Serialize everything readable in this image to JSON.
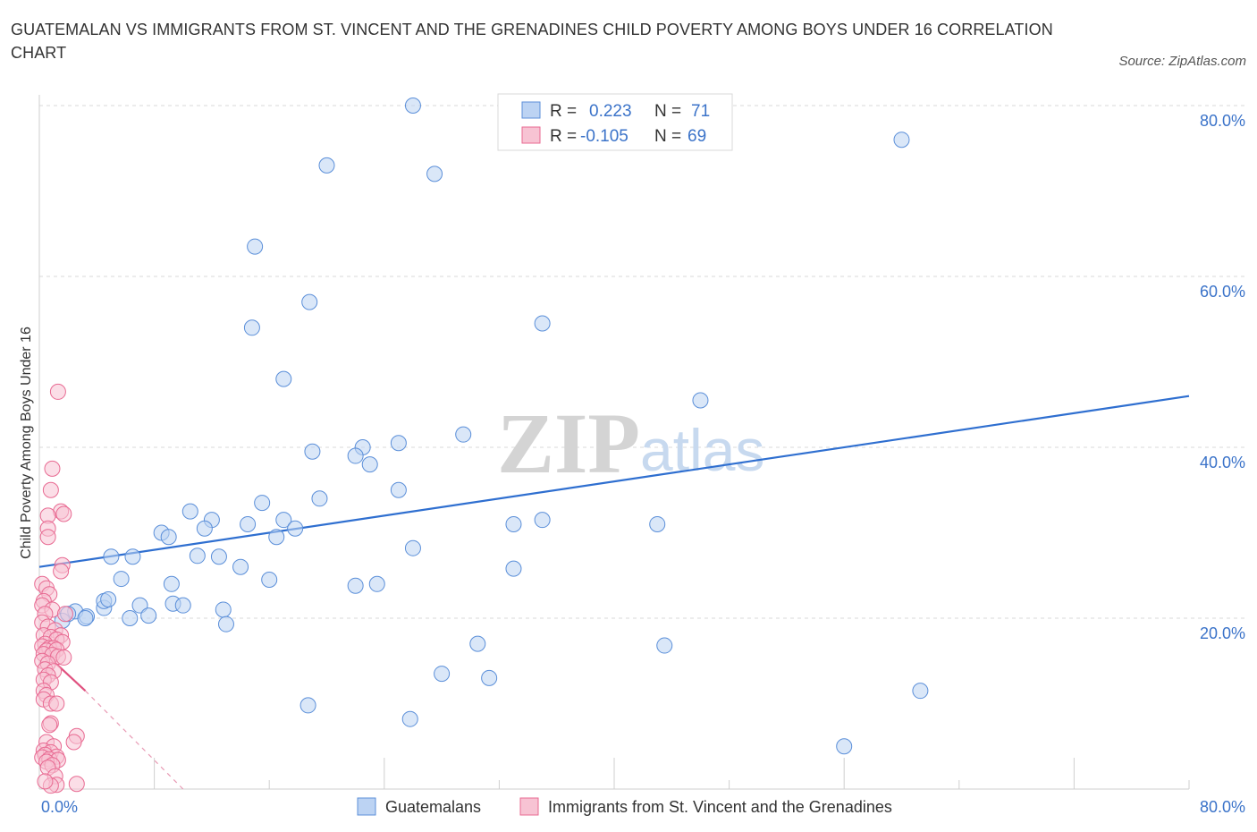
{
  "title": "GUATEMALAN VS IMMIGRANTS FROM ST. VINCENT AND THE GRENADINES CHILD POVERTY AMONG BOYS UNDER 16 CORRELATION CHART",
  "source": "Source: ZipAtlas.com",
  "watermark": {
    "zip": "ZIP",
    "atlas": "atlas"
  },
  "legend_box": {
    "rows": [
      {
        "r_label": "R =",
        "r_value": "0.223",
        "n_label": "N =",
        "n_value": "71"
      },
      {
        "r_label": "R =",
        "r_value": "-0.105",
        "n_label": "N =",
        "n_value": "69"
      }
    ]
  },
  "colors": {
    "blue": "#5b8fd9",
    "blue_fill": "#bcd3f3",
    "pink": "#e86a92",
    "pink_fill": "#f7c3d3",
    "axis_text": "#3b73c9",
    "grid": "#d9d9d9"
  },
  "chart_data": {
    "type": "scatter",
    "xlabel": "",
    "ylabel": "Child Poverty Among Boys Under 16",
    "xlim": [
      0,
      80
    ],
    "ylim": [
      0,
      80
    ],
    "x_tick_labels": [
      {
        "value": 0,
        "label": "0.0%"
      },
      {
        "value": 80,
        "label": "80.0%"
      }
    ],
    "y_tick_labels": [
      {
        "value": 20,
        "label": "20.0%"
      },
      {
        "value": 40,
        "label": "40.0%"
      },
      {
        "value": 60,
        "label": "60.0%"
      },
      {
        "value": 80,
        "label": "80.0%"
      }
    ],
    "grid": true,
    "legend_position": "bottom-center",
    "series": [
      {
        "name": "Guatemalans",
        "color": "#5b8fd9",
        "R": 0.223,
        "N": 71,
        "trend": {
          "x0": 0,
          "y0": 26,
          "x1": 80,
          "y1": 46
        },
        "points": [
          [
            26,
            80
          ],
          [
            20,
            73
          ],
          [
            27.5,
            72
          ],
          [
            60,
            76
          ],
          [
            15,
            63.5
          ],
          [
            18.8,
            57
          ],
          [
            35,
            54.5
          ],
          [
            14.8,
            54
          ],
          [
            17,
            48
          ],
          [
            46,
            45.5
          ],
          [
            19,
            39.5
          ],
          [
            22.5,
            40
          ],
          [
            25,
            40.5
          ],
          [
            29.5,
            41.5
          ],
          [
            22,
            39
          ],
          [
            23,
            38
          ],
          [
            25,
            35
          ],
          [
            19.5,
            34
          ],
          [
            15.5,
            33.5
          ],
          [
            10.5,
            32.5
          ],
          [
            12,
            31.5
          ],
          [
            14.5,
            31
          ],
          [
            17,
            31.5
          ],
          [
            17.8,
            30.5
          ],
          [
            11.5,
            30.5
          ],
          [
            8.5,
            30
          ],
          [
            9,
            29.5
          ],
          [
            16.5,
            29.5
          ],
          [
            26,
            28.2
          ],
          [
            33,
            31
          ],
          [
            35,
            31.5
          ],
          [
            43,
            31
          ],
          [
            5,
            27.2
          ],
          [
            6.5,
            27.2
          ],
          [
            11,
            27.3
          ],
          [
            12.5,
            27.2
          ],
          [
            14,
            26
          ],
          [
            33,
            25.8
          ],
          [
            5.7,
            24.6
          ],
          [
            9.2,
            24
          ],
          [
            16,
            24.5
          ],
          [
            22,
            23.8
          ],
          [
            23.5,
            24
          ],
          [
            2.5,
            20.8
          ],
          [
            3.3,
            20.2
          ],
          [
            4.5,
            21.2
          ],
          [
            4.5,
            22
          ],
          [
            4.8,
            22.2
          ],
          [
            7,
            21.5
          ],
          [
            9.3,
            21.7
          ],
          [
            10,
            21.5
          ],
          [
            12.8,
            21
          ],
          [
            1.6,
            19.7
          ],
          [
            3.2,
            20
          ],
          [
            6.3,
            20
          ],
          [
            7.6,
            20.3
          ],
          [
            13,
            19.3
          ],
          [
            2,
            20.5
          ],
          [
            30.5,
            17
          ],
          [
            43.5,
            16.8
          ],
          [
            28,
            13.5
          ],
          [
            31.3,
            13
          ],
          [
            18.7,
            9.8
          ],
          [
            25.8,
            8.2
          ],
          [
            61.3,
            11.5
          ],
          [
            56,
            5
          ]
        ]
      },
      {
        "name": "Immigrants from St. Vincent and the Grenadines",
        "color": "#e86a92",
        "R": -0.105,
        "N": 69,
        "trend": {
          "x0": 0,
          "y0": 16.5,
          "x1": 3.2,
          "y1": 11.5,
          "dash_to": {
            "x": 10,
            "y": 0
          }
        },
        "points": [
          [
            1.3,
            46.5
          ],
          [
            0.9,
            37.5
          ],
          [
            0.8,
            35
          ],
          [
            1.5,
            32.5
          ],
          [
            0.6,
            32
          ],
          [
            1.7,
            32.2
          ],
          [
            0.6,
            30.5
          ],
          [
            0.6,
            29.5
          ],
          [
            1.6,
            26.2
          ],
          [
            1.5,
            25.5
          ],
          [
            0.2,
            24
          ],
          [
            0.5,
            23.5
          ],
          [
            0.7,
            22.8
          ],
          [
            0.3,
            22
          ],
          [
            0.2,
            21.5
          ],
          [
            0.9,
            21
          ],
          [
            0.4,
            20.5
          ],
          [
            1.8,
            20.5
          ],
          [
            0.2,
            19.5
          ],
          [
            0.6,
            19
          ],
          [
            1.1,
            18.6
          ],
          [
            1.5,
            18
          ],
          [
            0.3,
            18
          ],
          [
            0.8,
            17.8
          ],
          [
            1.2,
            17.5
          ],
          [
            1.6,
            17.2
          ],
          [
            0.4,
            17
          ],
          [
            0.2,
            16.7
          ],
          [
            0.7,
            16.5
          ],
          [
            1.0,
            16.5
          ],
          [
            0.5,
            16.2
          ],
          [
            1.2,
            16.3
          ],
          [
            0.3,
            15.8
          ],
          [
            0.9,
            15.7
          ],
          [
            1.3,
            15.5
          ],
          [
            1.7,
            15.4
          ],
          [
            0.2,
            15
          ],
          [
            0.6,
            14.7
          ],
          [
            0.4,
            14
          ],
          [
            1.0,
            13.8
          ],
          [
            0.6,
            13.3
          ],
          [
            0.3,
            12.8
          ],
          [
            0.8,
            12.5
          ],
          [
            0.3,
            11.5
          ],
          [
            0.5,
            11
          ],
          [
            0.3,
            10.5
          ],
          [
            0.8,
            10
          ],
          [
            1.2,
            10
          ],
          [
            0.8,
            7.7
          ],
          [
            0.7,
            7.5
          ],
          [
            2.6,
            6.2
          ],
          [
            2.4,
            5.5
          ],
          [
            0.5,
            5.5
          ],
          [
            1.0,
            5
          ],
          [
            0.3,
            4.5
          ],
          [
            0.8,
            4.3
          ],
          [
            0.4,
            4
          ],
          [
            1.2,
            3.8
          ],
          [
            0.2,
            3.7
          ],
          [
            0.7,
            3.5
          ],
          [
            1.3,
            3.4
          ],
          [
            0.5,
            3.2
          ],
          [
            0.9,
            2.8
          ],
          [
            0.6,
            2.5
          ],
          [
            1.1,
            1.5
          ],
          [
            1.2,
            0.5
          ],
          [
            0.8,
            0.4
          ],
          [
            2.6,
            0.6
          ],
          [
            0.4,
            0.9
          ]
        ]
      }
    ]
  },
  "bottom_legend": [
    {
      "label": "Guatemalans"
    },
    {
      "label": "Immigrants from St. Vincent and the Grenadines"
    }
  ]
}
